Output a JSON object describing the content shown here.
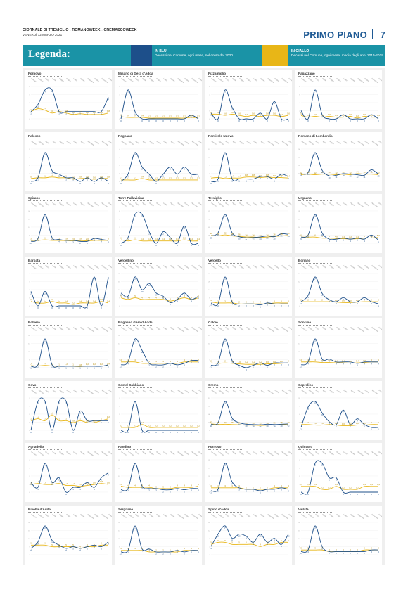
{
  "masthead": {
    "paper_name": "GIORNALE DI TREVIGLIO - ROMANOWEEK - CREMASCOWEEK",
    "date": "VENERDÌ 12 MARZO 2021",
    "section": "PRIMO PIANO",
    "page_number": "7"
  },
  "legend": {
    "title": "Legenda:",
    "blue_heading": "IN BLU",
    "blue_desc": "Decessi nel Comune, ogni mese, nel corso del 2020",
    "yellow_heading": "IN GIALLO",
    "yellow_desc": "Decessi nel Comune, ogni mese: media degli anni 2015-2019"
  },
  "colors": {
    "blue_series": "#1d4f8a",
    "yellow_series": "#e8b617",
    "bar": "#1a93a6"
  },
  "months": [
    "Gennaio",
    "Febbraio",
    "Marzo",
    "Aprile",
    "Maggio",
    "Giugno",
    "Luglio",
    "Agosto",
    "Settembre",
    "Ottobre",
    "Novembre",
    "Dicembre"
  ],
  "chart_data": [
    {
      "type": "line",
      "title": "Fornovo",
      "blue": [
        1,
        2,
        4,
        4,
        1,
        1,
        1,
        1,
        1,
        1,
        1,
        3
      ],
      "yellow": [
        1,
        1.4,
        1.2,
        0.8,
        1,
        0.8,
        0.6,
        0.7,
        0.6,
        0.6,
        0.6,
        0.8
      ]
    },
    {
      "type": "line",
      "title": "Misano di Gera d'Adda",
      "blue": [
        0,
        8,
        2,
        0,
        0,
        0,
        0,
        0,
        0,
        0,
        1,
        0
      ],
      "yellow": [
        0.6,
        0.4,
        0.4,
        0.4,
        0.2,
        0.2,
        0.2,
        0.2,
        0.2,
        0.2,
        0.4,
        0.2
      ]
    },
    {
      "type": "line",
      "title": "Pizzamiglio",
      "blue": [
        1,
        0,
        5,
        2,
        0,
        0,
        0,
        1,
        0,
        3,
        0,
        0
      ],
      "yellow": [
        0.8,
        0.8,
        0.6,
        0.8,
        0.6,
        0.4,
        0.6,
        0.4,
        0.6,
        0.6,
        0.4,
        0.6
      ]
    },
    {
      "type": "line",
      "title": "Pagazzano",
      "blue": [
        2,
        0,
        7,
        1,
        0,
        0,
        1,
        0,
        0,
        0,
        1,
        0
      ],
      "yellow": [
        0.8,
        0.4,
        0.6,
        0.4,
        0.6,
        0.4,
        0.4,
        0.6,
        0.2,
        0.6,
        0.4,
        0.4
      ]
    },
    {
      "type": "line",
      "title": "Palosco",
      "blue": [
        0,
        1,
        8,
        3,
        2,
        1,
        1,
        0,
        1,
        0,
        1,
        0
      ],
      "yellow": [
        0.8,
        1,
        1,
        1.2,
        1,
        1,
        0.6,
        0.8,
        0.8,
        0.6,
        0.8,
        0.8
      ]
    },
    {
      "type": "line",
      "title": "Pognano",
      "blue": [
        0,
        1,
        4,
        2,
        1,
        0,
        1,
        2,
        1,
        2,
        1,
        1
      ],
      "yellow": [
        0.2,
        0.2,
        0.2,
        0.4,
        0.2,
        0.2,
        0.2,
        0.2,
        0.2,
        0.2,
        0.2,
        0.2
      ]
    },
    {
      "type": "line",
      "title": "Pontirolo Nuovo",
      "blue": [
        0,
        1,
        12,
        1,
        1,
        1,
        1,
        2,
        2,
        1,
        3,
        2
      ],
      "yellow": [
        1.4,
        1.6,
        1.2,
        1.4,
        1.4,
        1.8,
        1.8,
        1.6,
        1.8,
        1.6,
        1.6,
        1.4
      ]
    },
    {
      "type": "line",
      "title": "Romano di Lombardia",
      "blue": [
        14,
        16,
        52,
        20,
        10,
        11,
        14,
        13,
        12,
        11,
        21,
        13
      ],
      "yellow": [
        12,
        13,
        12,
        13,
        13,
        12,
        13,
        12,
        14,
        13,
        13,
        12
      ]
    },
    {
      "type": "line",
      "title": "Spirano",
      "blue": [
        2,
        5,
        30,
        6,
        4,
        3,
        3,
        2,
        2,
        5,
        4,
        3
      ],
      "yellow": [
        3,
        3,
        3.6,
        3,
        3,
        2.8,
        2.6,
        2.8,
        2.6,
        3,
        3,
        3
      ]
    },
    {
      "type": "line",
      "title": "Torre Pallavicina",
      "blue": [
        0,
        1,
        5,
        5,
        2,
        0,
        2,
        1,
        0,
        3,
        0,
        0
      ],
      "yellow": [
        0.6,
        0.4,
        0.6,
        0.4,
        0.4,
        0.4,
        0.4,
        0.4,
        0.4,
        0.6,
        0.4,
        0.4
      ]
    },
    {
      "type": "line",
      "title": "Treviglio",
      "blue": [
        28,
        40,
        110,
        40,
        25,
        21,
        22,
        24,
        28,
        25,
        36,
        34
      ],
      "yellow": [
        30,
        28,
        32,
        28,
        26,
        24,
        24,
        22,
        24,
        26,
        28,
        30
      ]
    },
    {
      "type": "line",
      "title": "Urgnano",
      "blue": [
        6,
        8,
        28,
        10,
        4,
        4,
        5,
        4,
        5,
        4,
        8,
        3
      ],
      "yellow": [
        6,
        6,
        6,
        5,
        5,
        4.6,
        4.4,
        4.2,
        4.4,
        5,
        5.2,
        5.6
      ]
    },
    {
      "type": "line",
      "title": "Barbata",
      "blue": [
        2,
        0,
        2,
        0,
        0,
        0,
        0,
        0,
        0,
        4,
        0,
        4
      ],
      "yellow": [
        0.6,
        0.4,
        0.4,
        0.6,
        0.4,
        0.4,
        0.2,
        0.4,
        0.4,
        0.4,
        0.6,
        0.4
      ]
    },
    {
      "type": "line",
      "title": "Verdellino",
      "blue": [
        8,
        6,
        18,
        10,
        14,
        8,
        6,
        2,
        4,
        8,
        4,
        6
      ],
      "yellow": [
        5,
        4,
        5,
        4,
        4,
        4,
        4,
        3,
        4,
        5,
        4,
        5
      ]
    },
    {
      "type": "line",
      "title": "Verdello",
      "blue": [
        3,
        2,
        30,
        4,
        2,
        2,
        2,
        1,
        3,
        2,
        2,
        2
      ],
      "yellow": [
        4,
        3,
        3,
        3,
        2,
        2,
        2,
        2,
        2,
        3,
        3,
        3
      ]
    },
    {
      "type": "line",
      "title": "Boriano",
      "blue": [
        2,
        5,
        14,
        6,
        3,
        2,
        4,
        2,
        2,
        4,
        2,
        1
      ],
      "yellow": [
        2,
        2,
        2,
        2,
        2,
        1.8,
        1.6,
        1.6,
        1.8,
        2,
        2,
        2
      ]
    },
    {
      "type": "line",
      "title": "Bolliere",
      "blue": [
        1,
        2,
        20,
        2,
        1,
        1,
        1,
        1,
        1,
        1,
        1,
        2
      ],
      "yellow": [
        1.4,
        1.2,
        1.6,
        1.2,
        1,
        1.2,
        1,
        0.8,
        1.2,
        1.2,
        1.2,
        1.4
      ]
    },
    {
      "type": "line",
      "title": "Brignano Gera d'Adda",
      "blue": [
        2,
        4,
        20,
        12,
        3,
        2,
        2,
        3,
        2,
        3,
        5,
        5
      ],
      "yellow": [
        4,
        4,
        4,
        3,
        3,
        3,
        3,
        3,
        3,
        4,
        4,
        4
      ]
    },
    {
      "type": "line",
      "title": "Calcio",
      "blue": [
        1,
        2,
        12,
        3,
        1,
        0,
        1,
        2,
        1,
        2,
        2,
        2
      ],
      "yellow": [
        2,
        1.8,
        2,
        1.8,
        1.6,
        1.4,
        1.4,
        1.4,
        1.6,
        1.6,
        1.8,
        2
      ]
    },
    {
      "type": "line",
      "title": "Soncino",
      "blue": [
        2,
        4,
        20,
        6,
        6,
        4,
        4,
        4,
        3,
        4,
        4,
        4
      ],
      "yellow": [
        4,
        4,
        4,
        3.6,
        3.6,
        3.4,
        3.4,
        3.2,
        3.4,
        3.6,
        4,
        4
      ]
    },
    {
      "type": "line",
      "title": "Covo",
      "blue": [
        0,
        3,
        3,
        0,
        3,
        3,
        0,
        2,
        1,
        1,
        1,
        1
      ],
      "yellow": [
        1,
        1.2,
        1,
        1.6,
        1,
        1,
        0.8,
        1,
        0.8,
        0.8,
        1,
        1.2
      ]
    },
    {
      "type": "line",
      "title": "Castel Gabbiano",
      "blue": [
        0,
        0,
        2,
        0,
        0,
        0,
        0,
        0,
        0,
        0,
        0,
        0
      ],
      "yellow": [
        0.2,
        0.2,
        0.2,
        0.4,
        0.2,
        0.2,
        0.2,
        0.2,
        0.2,
        0.2,
        0.2,
        0.2
      ]
    },
    {
      "type": "line",
      "title": "Crema",
      "blue": [
        40,
        50,
        190,
        80,
        50,
        40,
        38,
        36,
        40,
        38,
        40,
        42
      ],
      "yellow": [
        42,
        38,
        40,
        38,
        36,
        34,
        34,
        32,
        34,
        36,
        38,
        40
      ]
    },
    {
      "type": "line",
      "title": "Caprelino",
      "blue": [
        1,
        8,
        10,
        6,
        3,
        2,
        7,
        2,
        4,
        2,
        1,
        1
      ],
      "yellow": [
        2,
        2,
        1.8,
        1.8,
        2,
        1.8,
        1.6,
        1.6,
        1.8,
        1.8,
        2,
        2
      ]
    },
    {
      "type": "line",
      "title": "Agnadello",
      "blue": [
        2,
        1,
        6,
        2,
        3,
        0,
        1,
        1,
        2,
        1,
        3,
        4
      ],
      "yellow": [
        1.6,
        1.8,
        1.6,
        1.6,
        1.8,
        1.4,
        1.4,
        1.2,
        1.4,
        1.6,
        1.8,
        1.6
      ]
    },
    {
      "type": "line",
      "title": "Pandino",
      "blue": [
        2,
        3,
        24,
        5,
        3,
        3,
        2,
        2,
        3,
        2,
        3,
        3
      ],
      "yellow": [
        5,
        4,
        4,
        4,
        4,
        3,
        3,
        3,
        4,
        4,
        4,
        5
      ]
    },
    {
      "type": "line",
      "title": "Fornovo",
      "blue": [
        1,
        2,
        20,
        7,
        3,
        2,
        2,
        1,
        2,
        2,
        3,
        2
      ],
      "yellow": [
        3,
        3,
        3,
        3,
        3,
        2,
        2,
        2,
        2,
        3,
        3,
        3
      ]
    },
    {
      "type": "line",
      "title": "Quintano",
      "blue": [
        0,
        0,
        2,
        2,
        1,
        1,
        0,
        0,
        0,
        0,
        0,
        0
      ],
      "yellow": [
        0.4,
        0.4,
        0.4,
        0.2,
        0.2,
        0.4,
        0.2,
        0.2,
        0.2,
        0.4,
        0.4,
        0.4
      ]
    },
    {
      "type": "line",
      "title": "Rivolta d'Adda",
      "blue": [
        4,
        8,
        18,
        9,
        6,
        4,
        5,
        4,
        5,
        6,
        5,
        8
      ],
      "yellow": [
        6,
        6,
        6,
        5,
        5,
        5,
        5,
        4,
        5,
        5,
        6,
        6
      ]
    },
    {
      "type": "line",
      "title": "Sergnano",
      "blue": [
        2,
        3,
        20,
        4,
        4,
        2,
        2,
        2,
        3,
        2,
        3,
        3
      ],
      "yellow": [
        3,
        3,
        3,
        3,
        2,
        2,
        2,
        2,
        2,
        3,
        3,
        3
      ]
    },
    {
      "type": "line",
      "title": "Spino d'Adda",
      "blue": [
        4,
        10,
        14,
        8,
        10,
        9,
        6,
        10,
        6,
        8,
        5,
        10
      ],
      "yellow": [
        5,
        6,
        6,
        5,
        5,
        5,
        5,
        4,
        5,
        5,
        6,
        6
      ]
    },
    {
      "type": "line",
      "title": "Vailate",
      "blue": [
        2,
        3,
        18,
        5,
        2,
        2,
        2,
        2,
        2,
        2,
        3,
        3
      ],
      "yellow": [
        3,
        3,
        3,
        3,
        2,
        2,
        2,
        2,
        2,
        3,
        3,
        3
      ]
    }
  ]
}
